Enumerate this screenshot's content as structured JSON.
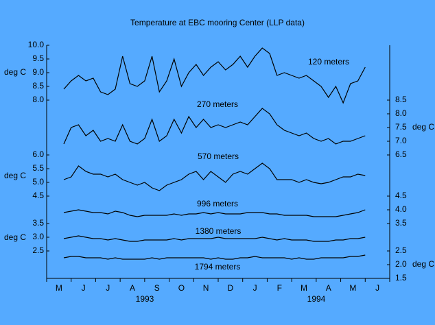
{
  "chart_data": {
    "type": "line",
    "title": "Temperature at EBC mooring Center (LLP data)",
    "y_unit": "deg C",
    "categories": [
      "M",
      "J",
      "J",
      "A",
      "S",
      "O",
      "N",
      "D",
      "J",
      "F",
      "M",
      "A",
      "M",
      "J"
    ],
    "years": [
      "1993",
      "1994"
    ],
    "xlim": [
      0,
      14
    ],
    "xticks": [
      0,
      1,
      2,
      3,
      4,
      5,
      6,
      7,
      8,
      9,
      10,
      11,
      12,
      13,
      14
    ],
    "ylim": [
      1.5,
      10
    ],
    "yticks": [
      {
        "value": 10,
        "label": "10.0"
      },
      9.5,
      {
        "value": 9,
        "label": "9.0"
      },
      8.5,
      {
        "value": 8,
        "label": "8.0"
      },
      {
        "value": 6,
        "label": "6.0"
      },
      5.5,
      {
        "value": 5,
        "label": "5.0"
      },
      4.5,
      3.5,
      {
        "value": 3,
        "label": "3.0"
      },
      2.5
    ],
    "y2lim": [
      1.5,
      10
    ],
    "y2ticks": [
      4.5,
      {
        "value": 4,
        "label": "4.0"
      },
      3.5,
      2.5,
      {
        "value": 2,
        "label": "2.0"
      },
      1.5
    ],
    "y3lim": [
      2,
      10.5
    ],
    "y3ticks": [
      8.5,
      {
        "value": 8,
        "label": "8.0"
      },
      7.5,
      {
        "value": 7,
        "label": "7.0"
      },
      6.5
    ],
    "x": [
      0.7,
      1.0,
      1.3,
      1.6,
      1.9,
      2.2,
      2.5,
      2.8,
      3.1,
      3.4,
      3.7,
      4.0,
      4.3,
      4.6,
      4.9,
      5.2,
      5.5,
      5.8,
      6.1,
      6.4,
      6.7,
      7.0,
      7.3,
      7.6,
      7.9,
      8.2,
      8.5,
      8.8,
      9.1,
      9.4,
      9.7,
      10.0,
      10.3,
      10.6,
      10.9,
      11.2,
      11.5,
      11.8,
      12.1,
      12.4,
      12.7,
      13.0
    ],
    "series": [
      {
        "name": "120 meters",
        "color": "#000000",
        "axis": "y",
        "values": [
          8.4,
          8.7,
          8.9,
          8.7,
          8.8,
          8.3,
          8.2,
          8.4,
          9.6,
          8.6,
          8.5,
          8.7,
          9.6,
          8.3,
          8.7,
          9.5,
          8.5,
          9.0,
          9.3,
          8.9,
          9.2,
          9.4,
          9.1,
          9.3,
          9.6,
          9.2,
          9.6,
          9.9,
          9.7,
          8.9,
          9.0,
          8.9,
          8.8,
          8.9,
          8.7,
          8.5,
          8.1,
          8.5,
          7.9,
          8.6,
          8.7,
          9.2
        ]
      },
      {
        "name": "270 meters",
        "color": "#000000",
        "axis": "y3",
        "values": [
          6.9,
          7.5,
          7.6,
          7.2,
          7.4,
          7.0,
          7.1,
          7.0,
          7.6,
          7.0,
          6.9,
          7.1,
          7.8,
          7.0,
          7.2,
          7.8,
          7.3,
          7.9,
          7.5,
          7.8,
          7.5,
          7.6,
          7.5,
          7.6,
          7.7,
          7.6,
          7.9,
          8.2,
          8.0,
          7.6,
          7.4,
          7.3,
          7.2,
          7.3,
          7.1,
          7.0,
          7.1,
          6.9,
          7.0,
          7.0,
          7.1,
          7.2
        ]
      },
      {
        "name": "570 meters",
        "color": "#000000",
        "axis": "y",
        "values": [
          5.1,
          5.2,
          5.6,
          5.4,
          5.3,
          5.3,
          5.2,
          5.3,
          5.1,
          5.0,
          4.9,
          5.0,
          4.8,
          4.7,
          4.9,
          5.0,
          5.1,
          5.3,
          5.4,
          5.1,
          5.4,
          5.2,
          5.0,
          5.3,
          5.4,
          5.3,
          5.5,
          5.7,
          5.5,
          5.1,
          5.1,
          5.1,
          5.0,
          5.1,
          5.0,
          4.95,
          5.0,
          5.1,
          5.2,
          5.2,
          5.3,
          5.25
        ]
      },
      {
        "name": "996 meters",
        "color": "#000000",
        "axis": "y2",
        "values": [
          3.9,
          3.95,
          4.0,
          3.95,
          3.9,
          3.9,
          3.85,
          3.95,
          3.9,
          3.8,
          3.75,
          3.8,
          3.8,
          3.8,
          3.8,
          3.85,
          3.8,
          3.85,
          3.85,
          3.9,
          3.85,
          3.9,
          3.85,
          3.85,
          3.85,
          3.9,
          3.9,
          3.9,
          3.85,
          3.85,
          3.8,
          3.8,
          3.8,
          3.8,
          3.75,
          3.75,
          3.75,
          3.75,
          3.8,
          3.85,
          3.9,
          4.0
        ]
      },
      {
        "name": "1380 meters",
        "color": "#000000",
        "axis": "y",
        "values": [
          2.95,
          3.0,
          3.05,
          3.0,
          2.95,
          2.95,
          2.9,
          2.95,
          2.9,
          2.85,
          2.85,
          2.9,
          2.9,
          2.9,
          2.9,
          2.95,
          2.9,
          2.95,
          2.95,
          2.95,
          2.95,
          3.0,
          2.95,
          2.95,
          2.95,
          2.95,
          2.95,
          3.0,
          2.95,
          2.9,
          2.95,
          2.9,
          2.9,
          2.9,
          2.85,
          2.85,
          2.85,
          2.9,
          2.9,
          2.95,
          2.95,
          3.0
        ]
      },
      {
        "name": "1794 meters",
        "color": "#000000",
        "axis": "y2",
        "values": [
          2.25,
          2.3,
          2.3,
          2.25,
          2.25,
          2.25,
          2.2,
          2.25,
          2.2,
          2.2,
          2.2,
          2.2,
          2.25,
          2.2,
          2.25,
          2.25,
          2.25,
          2.25,
          2.25,
          2.25,
          2.2,
          2.25,
          2.2,
          2.2,
          2.25,
          2.25,
          2.3,
          2.25,
          2.25,
          2.25,
          2.25,
          2.2,
          2.25,
          2.2,
          2.2,
          2.25,
          2.25,
          2.25,
          2.25,
          2.3,
          2.3,
          2.35
        ]
      }
    ]
  }
}
